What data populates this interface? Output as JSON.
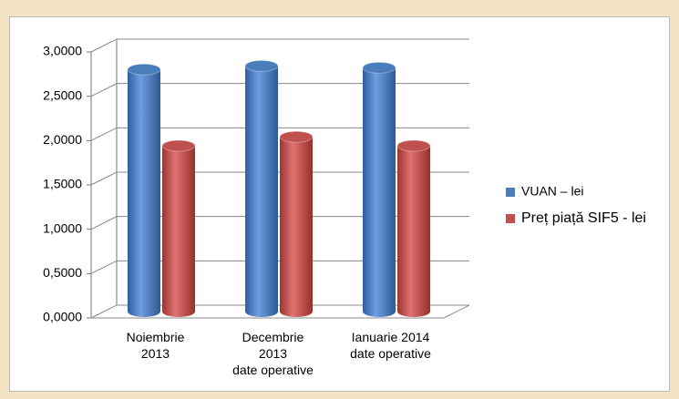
{
  "chart_data": {
    "type": "bar3d",
    "categories": [
      "Noiembrie\n2013",
      "Decembrie\n2013\ndate operative",
      "Ianuarie 2014\ndate operative"
    ],
    "series": [
      {
        "name": "VUAN – lei",
        "color": "#4a7ebb",
        "values": [
          2.73,
          2.77,
          2.75
        ]
      },
      {
        "name": "Preț piață SIF5 - lei",
        "color": "#c0504d",
        "values": [
          1.87,
          1.97,
          1.87
        ]
      }
    ],
    "ylim": [
      0,
      3
    ],
    "yticks": [
      {
        "value": 0,
        "label": "0,0000"
      },
      {
        "value": 0.5,
        "label": "0,5000"
      },
      {
        "value": 1,
        "label": "1,0000"
      },
      {
        "value": 1.5,
        "label": "1,5000"
      },
      {
        "value": 2,
        "label": "2,0000"
      },
      {
        "value": 2.5,
        "label": "2,5000"
      },
      {
        "value": 3,
        "label": "3,0000"
      }
    ],
    "grid": true,
    "legend": "right"
  }
}
